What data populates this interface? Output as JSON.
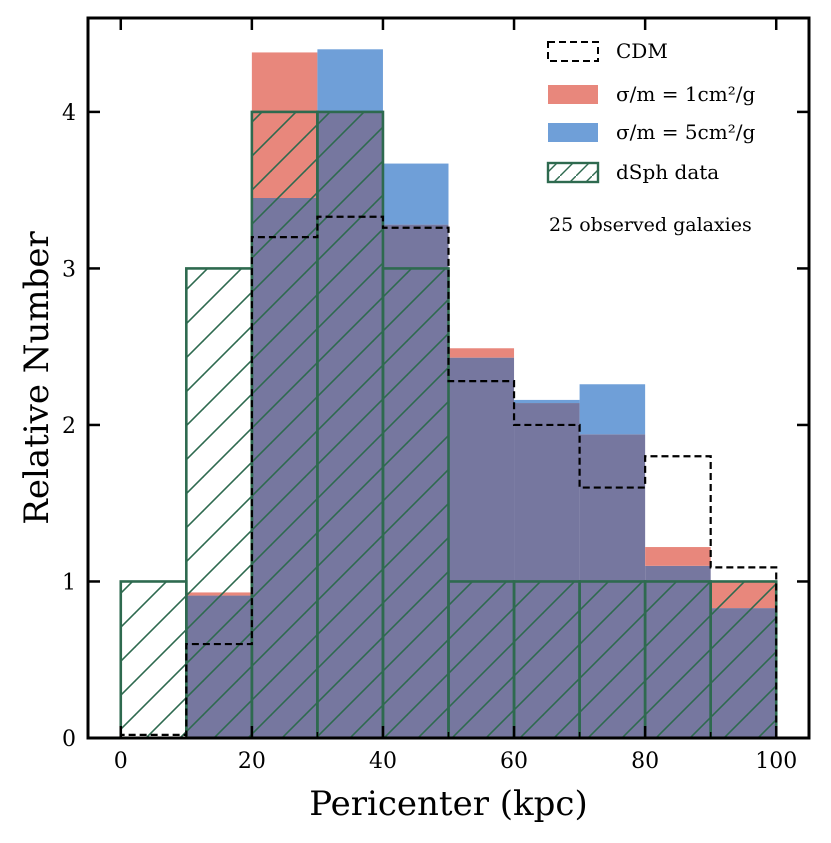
{
  "chart_data": {
    "type": "bar",
    "title": "",
    "xlabel": "Pericenter (kpc)",
    "ylabel": "Relative Number",
    "xlim": [
      -5,
      105
    ],
    "ylim": [
      0,
      4.6
    ],
    "bin_edges": [
      0,
      10,
      20,
      30,
      40,
      50,
      60,
      70,
      80,
      90,
      100
    ],
    "x_ticks": [
      0,
      20,
      40,
      60,
      80,
      100
    ],
    "y_ticks": [
      0,
      1,
      2,
      3,
      4
    ],
    "annotation": "25 observed galaxies",
    "series": [
      {
        "name": "CDM",
        "legend_label": "CDM",
        "style": "step-dashed",
        "color": "#000000",
        "values": [
          0.02,
          0.6,
          3.2,
          3.33,
          3.26,
          2.28,
          2.0,
          1.6,
          1.8,
          1.09
        ]
      },
      {
        "name": "SIDM 1",
        "legend_label": "σ/m = 1cm²/g",
        "style": "filled",
        "color": "#e8877c",
        "values": [
          0,
          0.93,
          4.38,
          4.0,
          3.28,
          2.49,
          2.14,
          1.94,
          1.22,
          1.0
        ]
      },
      {
        "name": "SIDM 5",
        "legend_label": "σ/m = 5cm²/g",
        "style": "filled",
        "color": "#6f9fd8",
        "values": [
          0,
          0.91,
          3.45,
          4.4,
          3.67,
          2.43,
          2.16,
          2.26,
          1.1,
          0.83
        ]
      },
      {
        "name": "dSph data",
        "legend_label": "dSph data",
        "style": "hatched",
        "color": "#2e6a4f",
        "values": [
          1,
          3,
          4,
          4,
          3,
          1,
          1,
          1,
          1,
          1
        ]
      }
    ],
    "overlap_color": "#76779f"
  }
}
